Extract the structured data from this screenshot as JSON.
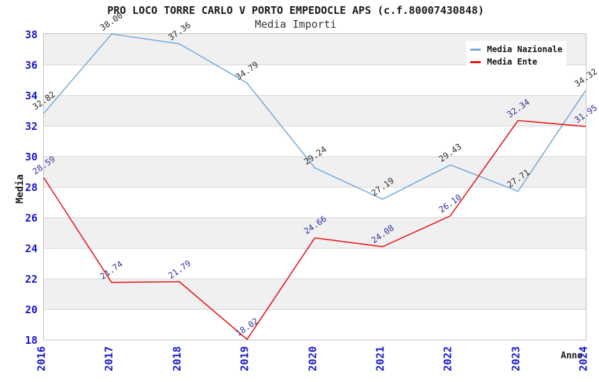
{
  "chart_data": {
    "type": "line",
    "title": "PRO LOCO TORRE CARLO V PORTO EMPEDOCLE APS (c.f.80007430848)",
    "subtitle": "Media Importi",
    "xlabel": "Anno",
    "ylabel": "Media",
    "categories": [
      "2016",
      "2017",
      "2018",
      "2019",
      "2020",
      "2021",
      "2022",
      "2023",
      "2024"
    ],
    "ylim": [
      18,
      38
    ],
    "ytick_step": 2,
    "ytick_labels": [
      "18",
      "20",
      "22",
      "24",
      "26",
      "28",
      "30",
      "32",
      "34",
      "36",
      "38"
    ],
    "grid": "horizontal-bands-alternating",
    "legend_position": "top-right",
    "colors": {
      "axis_tick_text": "#1616cf",
      "band_gray": "#f0f0f0",
      "band_white": "#ffffff",
      "gridline": "#d6d6d6",
      "plot_border": "#bfbfbf"
    },
    "series": [
      {
        "name": "Media Nazionale",
        "color": "#74aadc",
        "label_color": "#2d2d2d",
        "values": [
          32.82,
          38.0,
          37.36,
          34.79,
          29.24,
          27.19,
          29.43,
          27.71,
          34.32
        ],
        "labels": [
          "32.82",
          "38.00",
          "37.36",
          "34.79",
          "29.24",
          "27.19",
          "29.43",
          "27.71",
          "34.32"
        ]
      },
      {
        "name": "Media Ente",
        "color": "#e41414",
        "label_color": "#32329b",
        "values": [
          28.59,
          21.74,
          21.79,
          18.02,
          24.66,
          24.08,
          26.1,
          32.34,
          31.95
        ],
        "labels": [
          "28.59",
          "21.74",
          "21.79",
          "18.02",
          "24.66",
          "24.08",
          "26.10",
          "32.34",
          "31.95"
        ]
      }
    ]
  }
}
